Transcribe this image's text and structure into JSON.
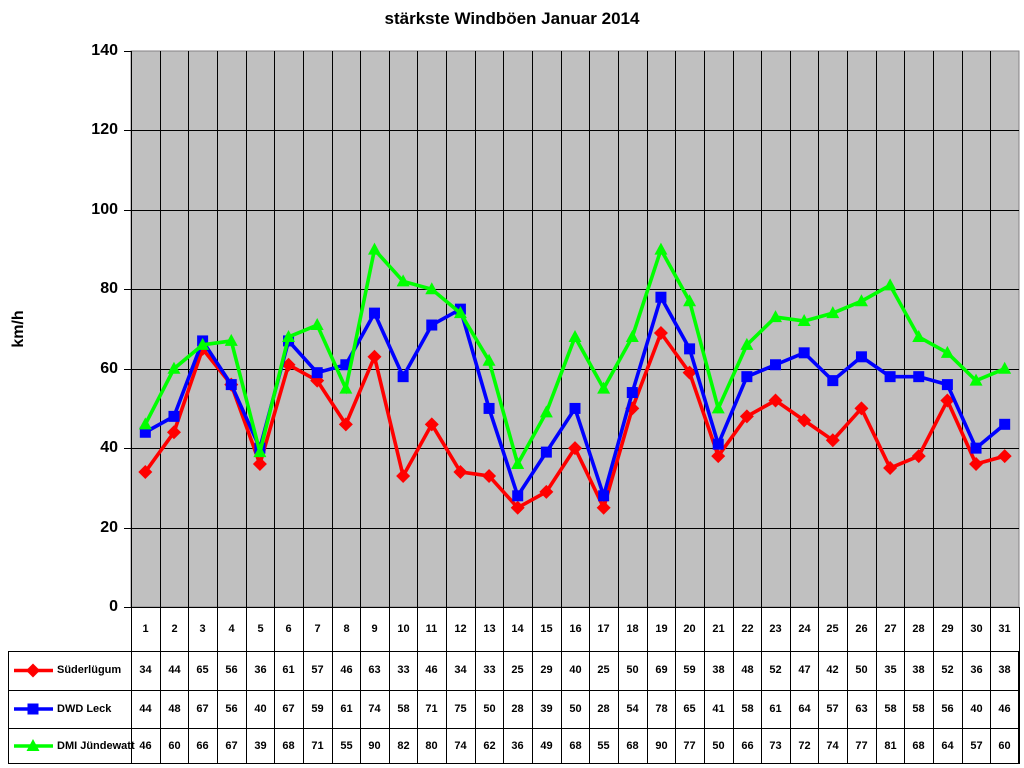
{
  "title": "stärkste Windböen Januar 2014",
  "y_axis": {
    "label": "km/h",
    "ticks": [
      "0",
      "20",
      "40",
      "60",
      "80",
      "100",
      "120",
      "140"
    ]
  },
  "chart_data": {
    "type": "line",
    "title": "stärkste Windböen Januar 2014",
    "ylabel": "km/h",
    "xlabel": "",
    "ylim": [
      0,
      140
    ],
    "ytick_step": 20,
    "grid": true,
    "plot_background": "#c0c0c0",
    "gridline_color": "#000000",
    "legend_position": "table-left",
    "x": [
      1,
      2,
      3,
      4,
      5,
      6,
      7,
      8,
      9,
      10,
      11,
      12,
      13,
      14,
      15,
      16,
      17,
      18,
      19,
      20,
      21,
      22,
      23,
      24,
      25,
      26,
      27,
      28,
      29,
      30,
      31
    ],
    "series": [
      {
        "name": "Süderlügum",
        "color": "#ff0000",
        "marker": "diamond",
        "values": [
          34,
          44,
          65,
          56,
          36,
          61,
          57,
          46,
          63,
          33,
          46,
          34,
          33,
          25,
          29,
          40,
          25,
          50,
          69,
          59,
          38,
          48,
          52,
          47,
          42,
          50,
          35,
          38,
          52,
          36,
          38
        ]
      },
      {
        "name": "DWD Leck",
        "color": "#0000ff",
        "marker": "square",
        "values": [
          44,
          48,
          67,
          56,
          40,
          67,
          59,
          61,
          74,
          58,
          71,
          75,
          50,
          28,
          39,
          50,
          28,
          54,
          78,
          65,
          41,
          58,
          61,
          64,
          57,
          63,
          58,
          58,
          56,
          40,
          46
        ]
      },
      {
        "name": "DMI Jündewatt",
        "color": "#00ff00",
        "marker": "triangle",
        "values": [
          46,
          60,
          66,
          67,
          39,
          68,
          71,
          55,
          90,
          82,
          80,
          74,
          62,
          36,
          49,
          68,
          55,
          68,
          90,
          77,
          50,
          66,
          73,
          72,
          74,
          77,
          81,
          68,
          64,
          57,
          60
        ]
      }
    ]
  }
}
